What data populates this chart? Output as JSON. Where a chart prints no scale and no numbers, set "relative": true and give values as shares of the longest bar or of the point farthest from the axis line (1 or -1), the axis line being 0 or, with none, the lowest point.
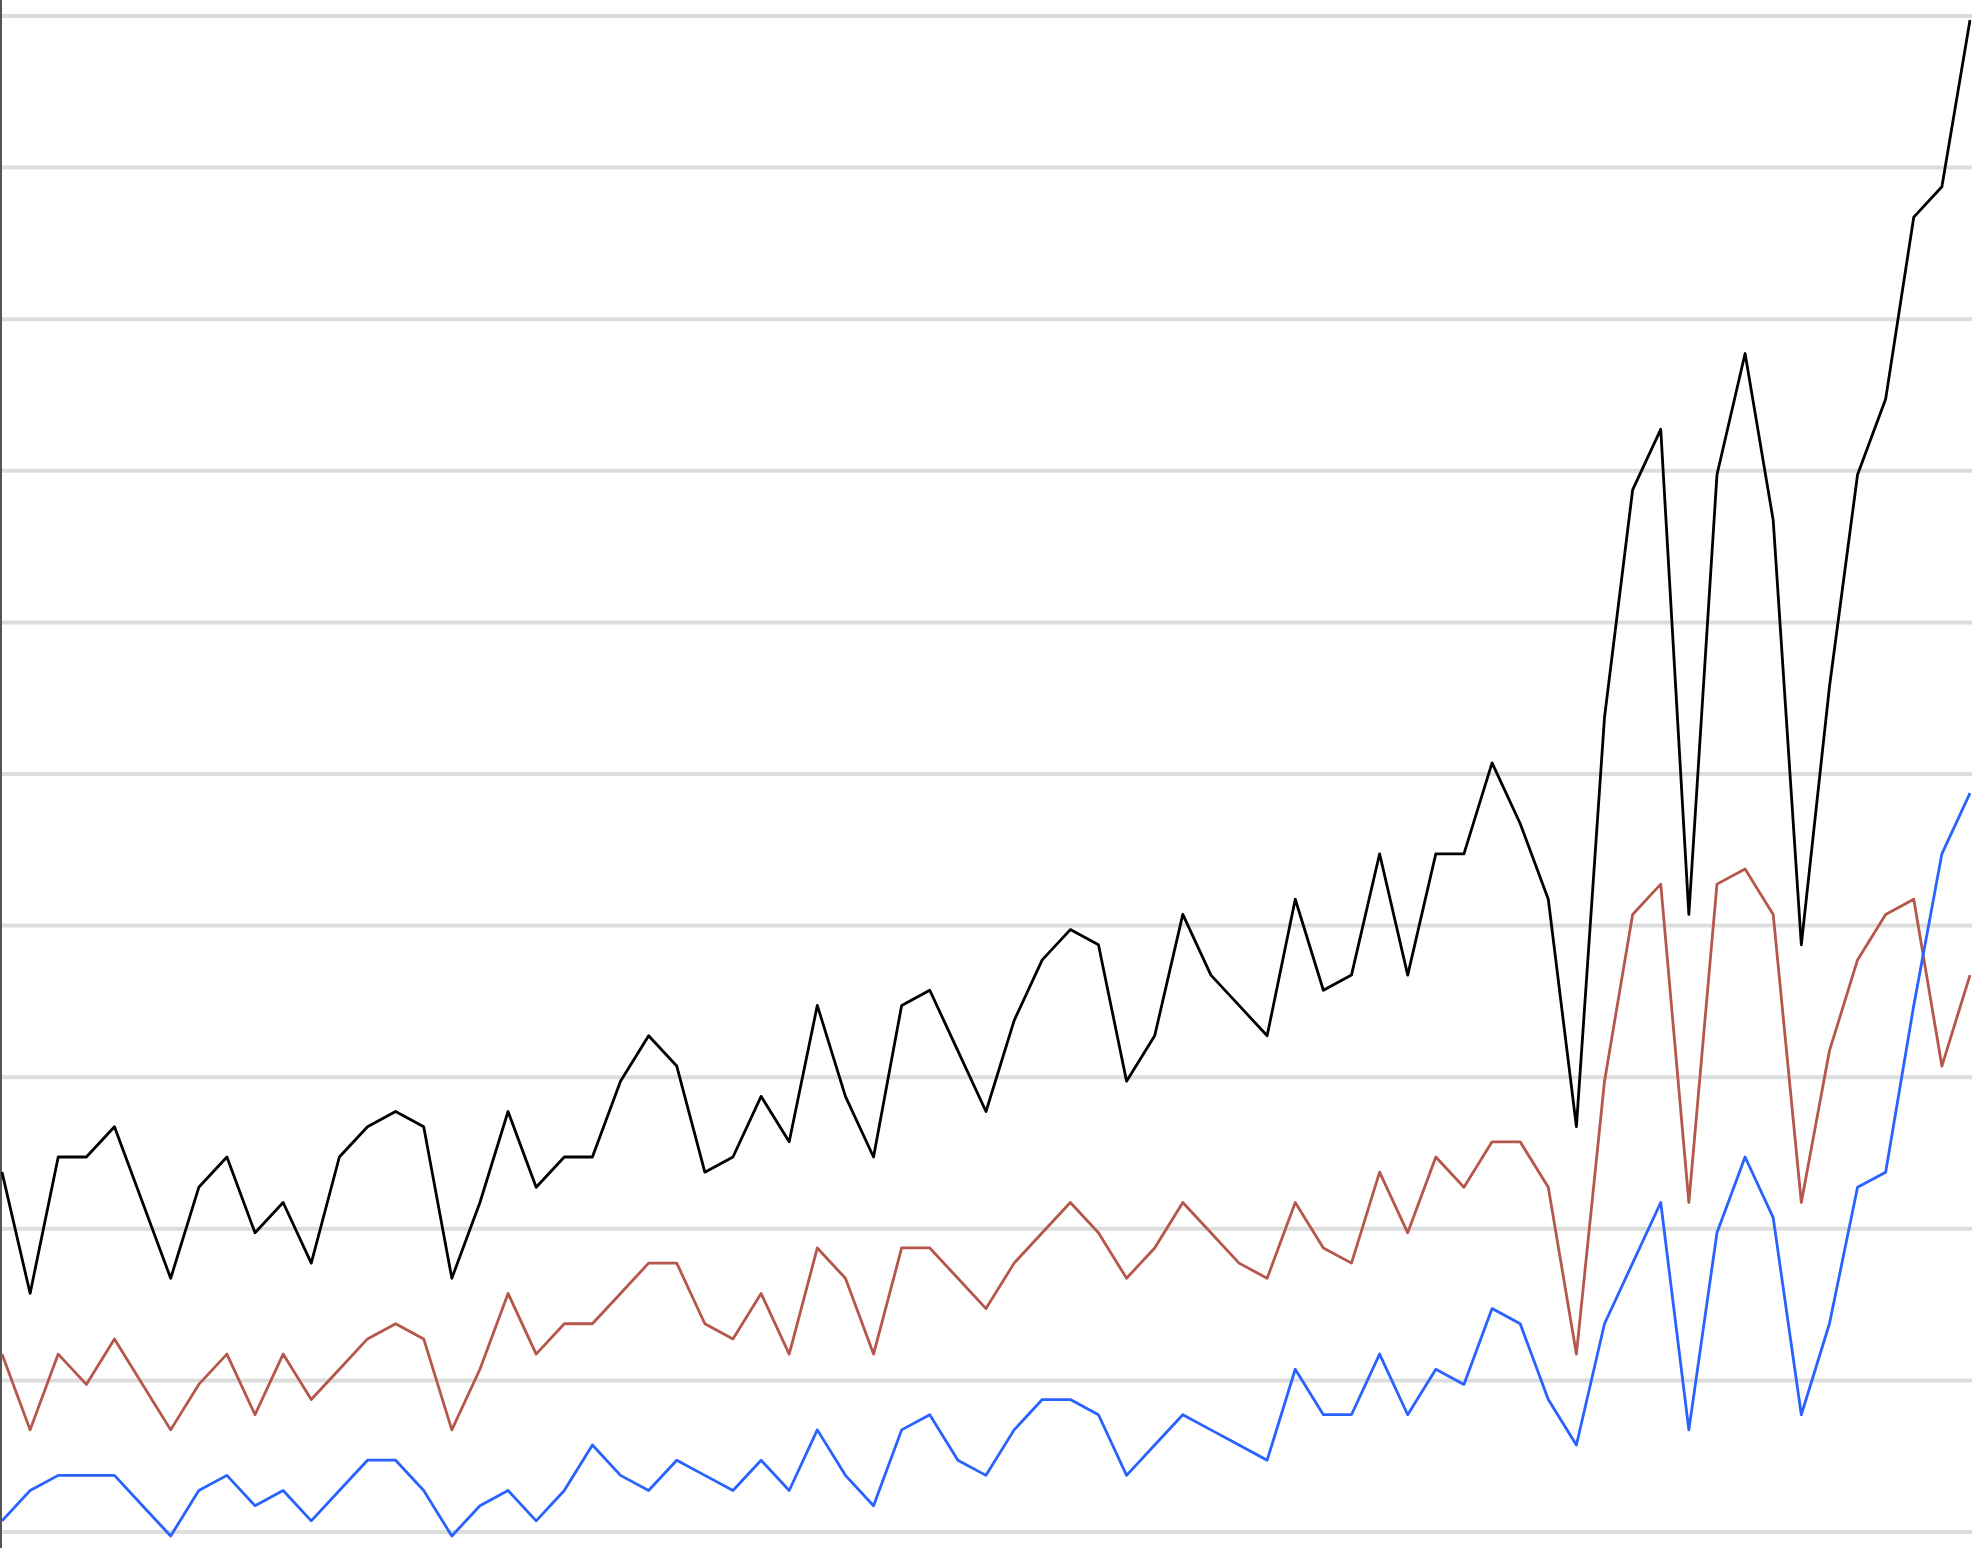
{
  "chart_data": {
    "type": "line",
    "relative": true,
    "grid": "y",
    "line_style": "solid",
    "categories": [
      null,
      null,
      null,
      null,
      null,
      null,
      null,
      null,
      null,
      null,
      null,
      null,
      null,
      null,
      null,
      null,
      null,
      null,
      null,
      null,
      null,
      null,
      null,
      null,
      null,
      null,
      null,
      null,
      null,
      null,
      null,
      null,
      null,
      null,
      null,
      null,
      null,
      null,
      null,
      null,
      null,
      null,
      null,
      null,
      null,
      null,
      null,
      null,
      null,
      null,
      null,
      null,
      null,
      null,
      null,
      null,
      null,
      null,
      null,
      null,
      null,
      null,
      null,
      null,
      null,
      null,
      null,
      null,
      null,
      null,
      null
    ],
    "series": [
      {
        "color": "#000000",
        "values": [
          0.24,
          0.16,
          0.25,
          0.25,
          0.27,
          0.22,
          0.17,
          0.23,
          0.25,
          0.2,
          0.22,
          0.18,
          0.25,
          0.27,
          0.28,
          0.27,
          0.17,
          0.22,
          0.28,
          0.23,
          0.25,
          0.25,
          0.3,
          0.33,
          0.31,
          0.24,
          0.25,
          0.29,
          0.26,
          0.35,
          0.29,
          0.25,
          0.35,
          0.36,
          0.32,
          0.28,
          0.34,
          0.38,
          0.4,
          0.39,
          0.3,
          0.33,
          0.41,
          0.37,
          0.35,
          0.33,
          0.42,
          0.36,
          0.37,
          0.45,
          0.37,
          0.45,
          0.45,
          0.51,
          0.47,
          0.42,
          0.27,
          0.54,
          0.69,
          0.73,
          0.41,
          0.7,
          0.78,
          0.67,
          0.39,
          0.56,
          0.7,
          0.75,
          0.87,
          0.89,
          1.0
        ]
      },
      {
        "color": "#b5574b",
        "values": [
          0.12,
          0.07,
          0.12,
          0.1,
          0.13,
          0.1,
          0.07,
          0.1,
          0.12,
          0.08,
          0.12,
          0.09,
          0.11,
          0.13,
          0.14,
          0.13,
          0.07,
          0.11,
          0.16,
          0.12,
          0.14,
          0.14,
          0.16,
          0.18,
          0.18,
          0.14,
          0.13,
          0.16,
          0.12,
          0.19,
          0.17,
          0.12,
          0.19,
          0.19,
          0.17,
          0.15,
          0.18,
          0.2,
          0.22,
          0.2,
          0.17,
          0.19,
          0.22,
          0.2,
          0.18,
          0.17,
          0.22,
          0.19,
          0.18,
          0.24,
          0.2,
          0.25,
          0.23,
          0.26,
          0.26,
          0.23,
          0.12,
          0.3,
          0.41,
          0.43,
          0.22,
          0.43,
          0.44,
          0.41,
          0.22,
          0.32,
          0.38,
          0.41,
          0.42,
          0.31,
          0.37
        ]
      },
      {
        "color": "#2962ff",
        "values": [
          0.01,
          0.03,
          0.04,
          0.04,
          0.04,
          0.02,
          0.0,
          0.03,
          0.04,
          0.02,
          0.03,
          0.01,
          0.03,
          0.05,
          0.05,
          0.03,
          0.0,
          0.02,
          0.03,
          0.01,
          0.03,
          0.06,
          0.04,
          0.03,
          0.05,
          0.04,
          0.03,
          0.05,
          0.03,
          0.07,
          0.04,
          0.02,
          0.07,
          0.08,
          0.05,
          0.04,
          0.07,
          0.09,
          0.09,
          0.08,
          0.04,
          0.06,
          0.08,
          0.07,
          0.06,
          0.05,
          0.11,
          0.08,
          0.08,
          0.12,
          0.08,
          0.11,
          0.1,
          0.15,
          0.14,
          0.09,
          0.06,
          0.14,
          0.18,
          0.22,
          0.07,
          0.2,
          0.25,
          0.21,
          0.08,
          0.14,
          0.23,
          0.24,
          0.35,
          0.45,
          0.49
        ]
      }
    ]
  }
}
